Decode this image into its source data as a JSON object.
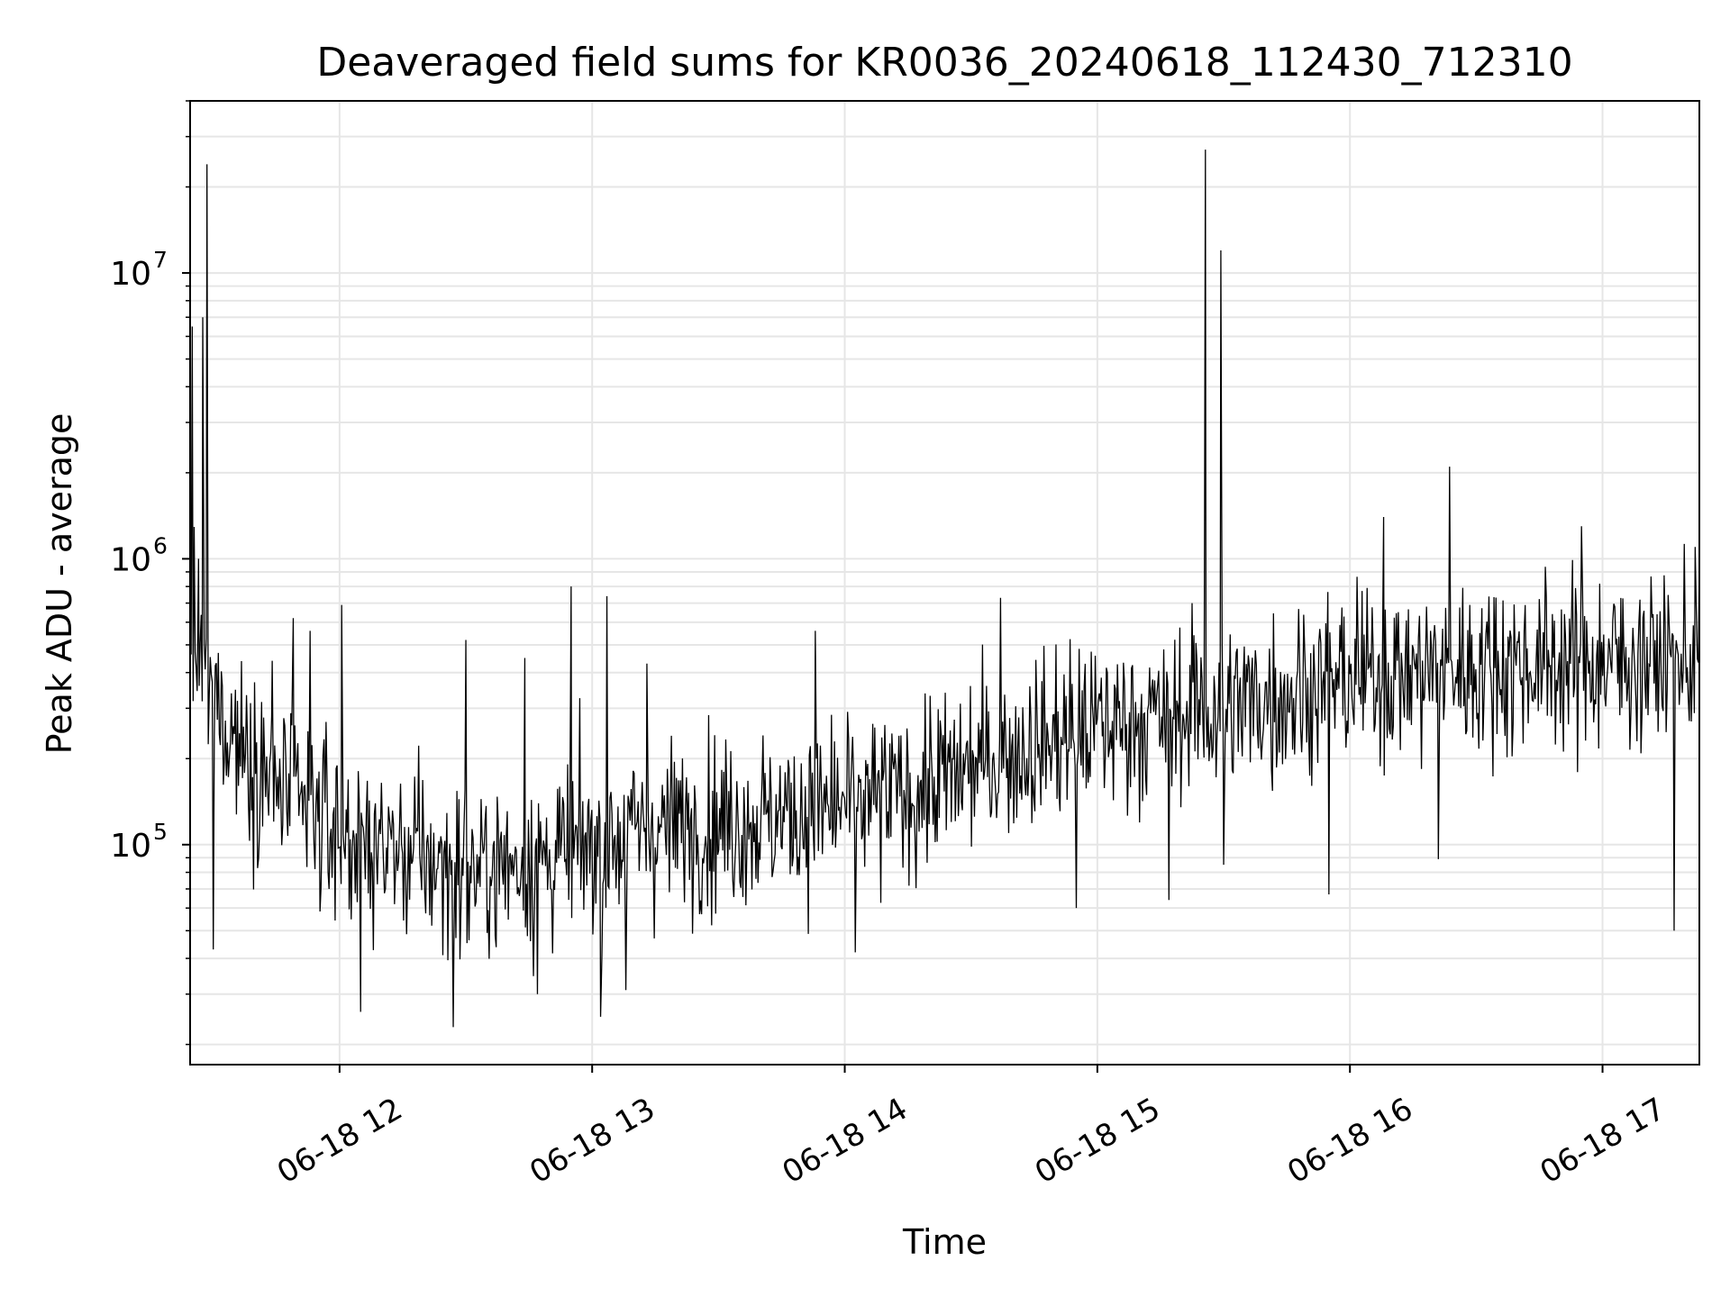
{
  "chart_data": {
    "type": "line",
    "title": "Deaveraged field sums for KR0036_20240618_112430_712310",
    "xlabel": "Time",
    "ylabel": "Peak ADU - average",
    "y_scale": "log",
    "xlim": [
      "2024-06-18T11:24:30",
      "2024-06-18T17:23:00"
    ],
    "ylim": [
      17000,
      40000000
    ],
    "x_ticks": [
      {
        "value": "2024-06-18T12:00",
        "label": "06-18 12"
      },
      {
        "value": "2024-06-18T13:00",
        "label": "06-18 13"
      },
      {
        "value": "2024-06-18T14:00",
        "label": "06-18 14"
      },
      {
        "value": "2024-06-18T15:00",
        "label": "06-18 15"
      },
      {
        "value": "2024-06-18T16:00",
        "label": "06-18 16"
      },
      {
        "value": "2024-06-18T17:00",
        "label": "06-18 17"
      }
    ],
    "y_ticks": [
      {
        "value": 100000,
        "base": "10",
        "exp": "5"
      },
      {
        "value": 1000000,
        "base": "10",
        "exp": "6"
      },
      {
        "value": 10000000,
        "base": "10",
        "exp": "7"
      }
    ],
    "grid": true,
    "line_color": "#000000",
    "grid_color": "#e6e6e6",
    "trend_points": [
      {
        "x": "2024-06-18T11:25",
        "y": 500000
      },
      {
        "x": "2024-06-18T11:31",
        "y": 300000
      },
      {
        "x": "2024-06-18T11:45",
        "y": 160000
      },
      {
        "x": "2024-06-18T12:00",
        "y": 110000
      },
      {
        "x": "2024-06-18T12:30",
        "y": 80000
      },
      {
        "x": "2024-06-18T12:50",
        "y": 90000
      },
      {
        "x": "2024-06-18T13:15",
        "y": 115000
      },
      {
        "x": "2024-06-18T13:45",
        "y": 125000
      },
      {
        "x": "2024-06-18T14:15",
        "y": 150000
      },
      {
        "x": "2024-06-18T14:35",
        "y": 200000
      },
      {
        "x": "2024-06-18T15:00",
        "y": 260000
      },
      {
        "x": "2024-06-18T15:30",
        "y": 300000
      },
      {
        "x": "2024-06-18T16:00",
        "y": 380000
      },
      {
        "x": "2024-06-18T16:30",
        "y": 420000
      },
      {
        "x": "2024-06-18T17:23",
        "y": 450000
      }
    ],
    "notable_points": [
      {
        "x": "2024-06-18T11:25:00",
        "y": 6500000
      },
      {
        "x": "2024-06-18T11:26:30",
        "y": 1000000
      },
      {
        "x": "2024-06-18T11:27:30",
        "y": 7000000
      },
      {
        "x": "2024-06-18T11:28:30",
        "y": 24000000
      },
      {
        "x": "2024-06-18T11:30:00",
        "y": 43000
      },
      {
        "x": "2024-06-18T11:44:00",
        "y": 440000
      },
      {
        "x": "2024-06-18T11:49:00",
        "y": 620000
      },
      {
        "x": "2024-06-18T11:53:00",
        "y": 560000
      },
      {
        "x": "2024-06-18T12:00:30",
        "y": 690000
      },
      {
        "x": "2024-06-18T12:05:00",
        "y": 26000
      },
      {
        "x": "2024-06-18T12:27:00",
        "y": 23000
      },
      {
        "x": "2024-06-18T12:30:00",
        "y": 520000
      },
      {
        "x": "2024-06-18T12:44:00",
        "y": 450000
      },
      {
        "x": "2024-06-18T12:47:00",
        "y": 30000
      },
      {
        "x": "2024-06-18T12:55:00",
        "y": 800000
      },
      {
        "x": "2024-06-18T13:02:00",
        "y": 25000
      },
      {
        "x": "2024-06-18T13:03:30",
        "y": 740000
      },
      {
        "x": "2024-06-18T13:08:00",
        "y": 31000
      },
      {
        "x": "2024-06-18T13:13:00",
        "y": 430000
      },
      {
        "x": "2024-06-18T13:53:00",
        "y": 560000
      },
      {
        "x": "2024-06-18T14:02:30",
        "y": 42000
      },
      {
        "x": "2024-06-18T14:37:00",
        "y": 730000
      },
      {
        "x": "2024-06-18T14:55:00",
        "y": 60000
      },
      {
        "x": "2024-06-18T15:17:00",
        "y": 64000
      },
      {
        "x": "2024-06-18T15:22:30",
        "y": 700000
      },
      {
        "x": "2024-06-18T15:25:40",
        "y": 27000000
      },
      {
        "x": "2024-06-18T15:30:00",
        "y": 85000
      },
      {
        "x": "2024-06-18T15:29:20",
        "y": 12000000
      },
      {
        "x": "2024-06-18T15:55:00",
        "y": 67000
      },
      {
        "x": "2024-06-18T16:08:00",
        "y": 1400000
      },
      {
        "x": "2024-06-18T16:21:00",
        "y": 89000
      },
      {
        "x": "2024-06-18T16:23:40",
        "y": 2100000
      },
      {
        "x": "2024-06-18T16:55:00",
        "y": 1300000
      },
      {
        "x": "2024-06-18T17:17:00",
        "y": 50000
      },
      {
        "x": "2024-06-18T17:22:00",
        "y": 1100000
      }
    ]
  }
}
